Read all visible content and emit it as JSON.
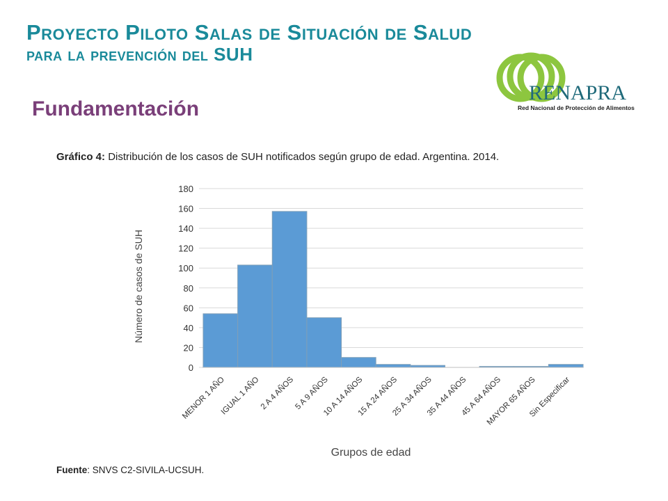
{
  "header": {
    "title_line1": "Proyecto Piloto Salas de Situación de Salud",
    "title_line2": "para la prevención del SUH",
    "section": "Fundamentación"
  },
  "logo": {
    "name": "RENAPRA",
    "tagline": "Red Nacional de Protección de Alimentos",
    "colors": {
      "rings": "#8dc63f",
      "text": "#1f6a7a"
    }
  },
  "figure": {
    "caption_label": "Gráfico 4:",
    "caption_text": " Distribución de los casos de SUH notificados según grupo de edad. Argentina. 2014.",
    "source_label": "Fuente",
    "source_text": ": SNVS C2-SIVILA-UCSUH."
  },
  "chart_data": {
    "type": "bar",
    "categories": [
      "MENOR 1 AÑO",
      "IGUAL  1 AÑO",
      "2 A 4 AÑOS",
      "5 A 9 AÑOS",
      "10 A 14 AÑOS",
      "15 A 24 AÑOS",
      "25 A 34 AÑOS",
      "35 A 44 AÑOS",
      "45 A 64 AÑOS",
      "MAYOR 65 AÑOS",
      "Sin Especificar"
    ],
    "values": [
      54,
      103,
      157,
      50,
      10,
      3,
      2,
      0,
      1,
      1,
      3
    ],
    "xlabel": "Grupos de edad",
    "ylabel": "Número de casos de SUH",
    "ylim": [
      0,
      180
    ],
    "yticks": [
      0,
      20,
      40,
      60,
      80,
      100,
      120,
      140,
      160,
      180
    ],
    "grid": true,
    "bar_color": "#5b9bd5"
  }
}
